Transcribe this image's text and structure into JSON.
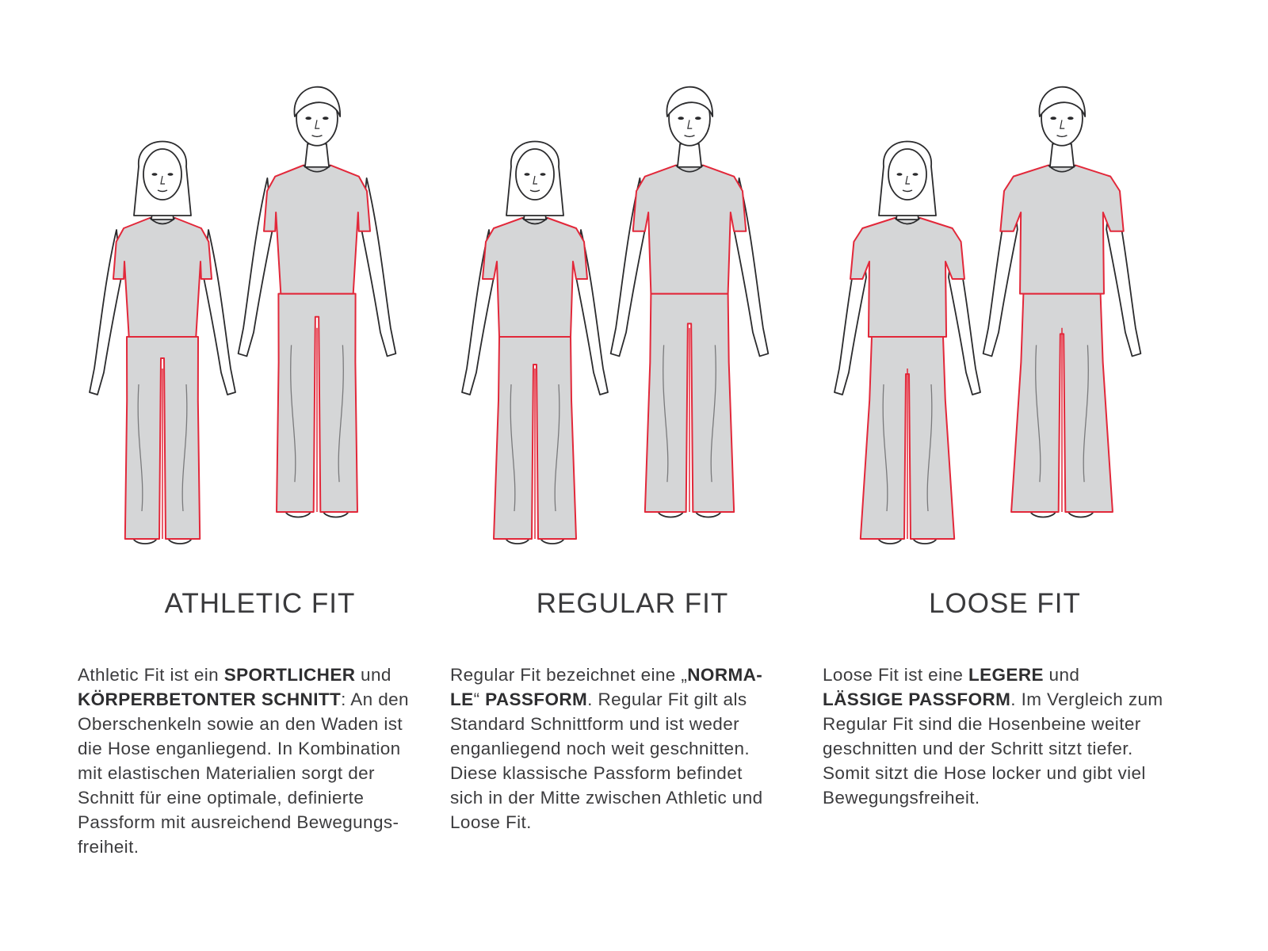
{
  "colors": {
    "fabric": "#d5d6d7",
    "outline": "#e2283a",
    "line": "#2b2b2d",
    "skin": "#ffffff"
  },
  "fits": [
    {
      "title": "ATHLETIC FIT",
      "looseness": 0.8,
      "lines": [
        [
          {
            "t": "Athletic Fit ist ein "
          },
          {
            "t": "SPORTLICHER",
            "b": true
          },
          {
            "t": " und"
          }
        ],
        [
          {
            "t": "KÖRPERBETONTER SCHNITT",
            "b": true
          },
          {
            "t": ": An den"
          }
        ],
        [
          {
            "t": "Oberschenkeln sowie an den Waden ist"
          }
        ],
        [
          {
            "t": "die Hose enganliegend. In Kombination"
          }
        ],
        [
          {
            "t": "mit elastischen Materialien sorgt der"
          }
        ],
        [
          {
            "t": "Schnitt für eine optimale, definierte"
          }
        ],
        [
          {
            "t": "Passform mit ausreichend Bewegungs-"
          }
        ],
        [
          {
            "t": "freiheit."
          }
        ]
      ]
    },
    {
      "title": "REGULAR FIT",
      "looseness": 1.0,
      "lines": [
        [
          {
            "t": "Regular Fit bezeichnet eine „"
          },
          {
            "t": "NORMA-",
            "b": true
          }
        ],
        [
          {
            "t": "LE",
            "b": true
          },
          {
            "t": "“ "
          },
          {
            "t": "PASSFORM",
            "b": true
          },
          {
            "t": ". Regular Fit gilt als"
          }
        ],
        [
          {
            "t": "Standard Schnittform und ist weder"
          }
        ],
        [
          {
            "t": "enganliegend noch weit geschnitten."
          }
        ],
        [
          {
            "t": "Diese klassische Passform befindet"
          }
        ],
        [
          {
            "t": "sich in der Mitte zwischen Athletic und"
          }
        ],
        [
          {
            "t": "Loose Fit."
          }
        ]
      ]
    },
    {
      "title": "LOOSE FIT",
      "looseness": 1.3,
      "lines": [
        [
          {
            "t": "Loose Fit ist eine "
          },
          {
            "t": "LEGERE",
            "b": true
          },
          {
            "t": " und"
          }
        ],
        [
          {
            "t": "LÄSSIGE PASSFORM",
            "b": true
          },
          {
            "t": ". Im Vergleich zum"
          }
        ],
        [
          {
            "t": "Regular Fit sind die Hosenbeine weiter"
          }
        ],
        [
          {
            "t": "geschnitten und der Schritt sitzt tiefer."
          }
        ],
        [
          {
            "t": "Somit sitzt die Hose locker und gibt viel"
          }
        ],
        [
          {
            "t": "Bewegungsfreiheit."
          }
        ]
      ]
    }
  ]
}
